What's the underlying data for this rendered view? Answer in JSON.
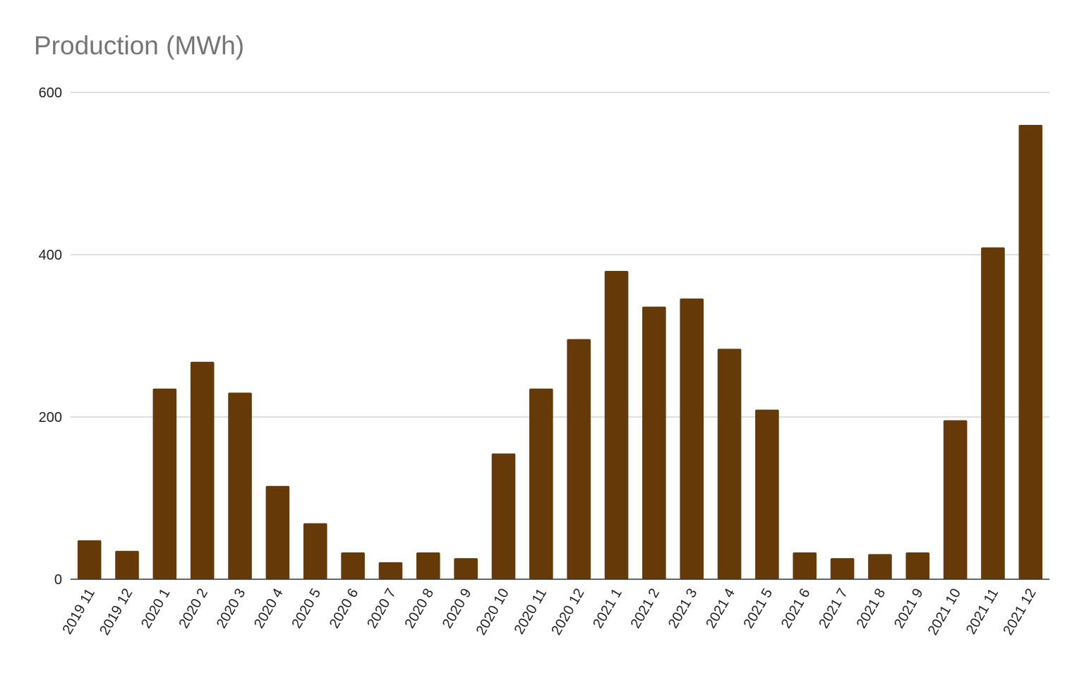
{
  "chart_data": {
    "type": "bar",
    "title": "Production (MWh)",
    "xlabel": "",
    "ylabel": "",
    "ylim": [
      0,
      600
    ],
    "yticks": [
      0,
      200,
      400,
      600
    ],
    "grid": true,
    "legend": "none",
    "bar_color": "#663a08",
    "categories": [
      "2019 11",
      "2019 12",
      "2020 1",
      "2020 2",
      "2020 3",
      "2020 4",
      "2020 5",
      "2020 6",
      "2020 7",
      "2020 8",
      "2020 9",
      "2020 10",
      "2020 11",
      "2020 12",
      "2021 1",
      "2021 2",
      "2021 3",
      "2021 4",
      "2021 5",
      "2021 6",
      "2021 7",
      "2021 8",
      "2021 9",
      "2021 10",
      "2021 11",
      "2021 12"
    ],
    "values": [
      48,
      35,
      235,
      268,
      230,
      115,
      69,
      33,
      21,
      33,
      26,
      155,
      235,
      296,
      380,
      336,
      346,
      284,
      209,
      33,
      26,
      31,
      33,
      196,
      409,
      560
    ]
  }
}
